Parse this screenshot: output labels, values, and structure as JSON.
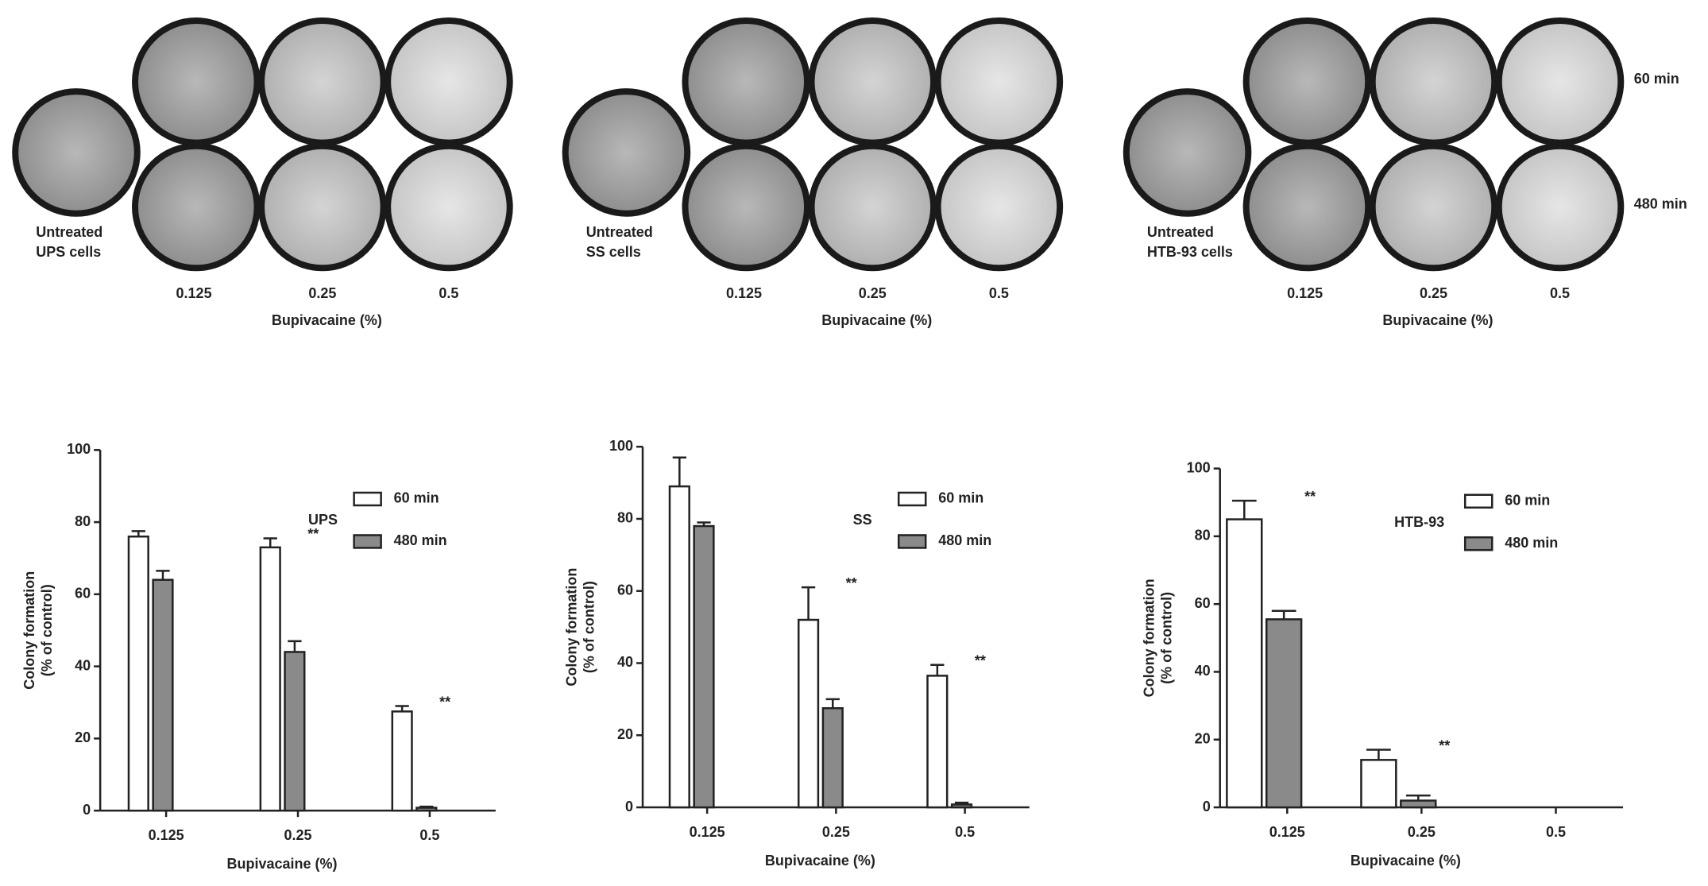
{
  "plates": {
    "row_labels": [
      "60 min",
      "480 min"
    ],
    "panels": [
      {
        "label": [
          "Untreated",
          "UPS cells"
        ],
        "doses": [
          "0.125",
          "0.25",
          "0.5"
        ],
        "xlabel": "Bupivacaine (%)"
      },
      {
        "label": [
          "Untreated",
          "SS cells"
        ],
        "doses": [
          "0.125",
          "0.25",
          "0.5"
        ],
        "xlabel": "Bupivacaine (%)"
      },
      {
        "label": [
          "Untreated",
          "HTB-93 cells"
        ],
        "doses": [
          "0.125",
          "0.25",
          "0.5"
        ],
        "xlabel": "Bupivacaine (%)"
      }
    ]
  },
  "chart_data": [
    {
      "type": "bar",
      "label": "UPS",
      "xlabel": "Bupivacaine (%)",
      "ylabel": [
        "Colony formation",
        "(% of control)"
      ],
      "categories": [
        "0.125",
        "0.25",
        "0.5"
      ],
      "ylim": [
        0,
        100
      ],
      "yticks": [
        0,
        20,
        40,
        60,
        80,
        100
      ],
      "legend": "upper right",
      "series": [
        {
          "name": "60 min",
          "color": "#ffffff",
          "values": [
            76,
            73,
            27.5
          ],
          "errors": [
            1.5,
            2.5,
            1.5
          ]
        },
        {
          "name": "480 min",
          "color": "#8a8a8a",
          "values": [
            64,
            44,
            0.8
          ],
          "errors": [
            2.5,
            3,
            0.3
          ]
        }
      ],
      "annotations": [
        {
          "text": "**",
          "x": "0.25"
        },
        {
          "text": "**",
          "x": "0.5"
        }
      ]
    },
    {
      "type": "bar",
      "label": "SS",
      "xlabel": "Bupivacaine (%)",
      "ylabel": [
        "Colony formation",
        "(% of control)"
      ],
      "categories": [
        "0.125",
        "0.25",
        "0.5"
      ],
      "ylim": [
        0,
        100
      ],
      "yticks": [
        0,
        20,
        40,
        60,
        80,
        100
      ],
      "legend": "upper right",
      "series": [
        {
          "name": "60 min",
          "color": "#ffffff",
          "values": [
            89,
            52,
            36.5
          ],
          "errors": [
            8,
            9,
            3
          ]
        },
        {
          "name": "480 min",
          "color": "#8a8a8a",
          "values": [
            78,
            27.5,
            0.8
          ],
          "errors": [
            1,
            2.5,
            0.5
          ]
        }
      ],
      "annotations": [
        {
          "text": "**",
          "x": "0.25"
        },
        {
          "text": "**",
          "x": "0.5"
        }
      ]
    },
    {
      "type": "bar",
      "label": "HTB-93",
      "xlabel": "Bupivacaine (%)",
      "ylabel": [
        "Colony formation",
        "(% of control)"
      ],
      "categories": [
        "0.125",
        "0.25",
        "0.5"
      ],
      "ylim": [
        0,
        100
      ],
      "yticks": [
        0,
        20,
        40,
        60,
        80,
        100
      ],
      "legend": "upper right",
      "series": [
        {
          "name": "60 min",
          "color": "#ffffff",
          "values": [
            85,
            14,
            null
          ],
          "errors": [
            5.5,
            3,
            null
          ]
        },
        {
          "name": "480 min",
          "color": "#8a8a8a",
          "values": [
            55.5,
            2,
            null
          ],
          "errors": [
            2.5,
            1.5,
            null
          ]
        }
      ],
      "annotations": [
        {
          "text": "**",
          "x": "0.125"
        },
        {
          "text": "**",
          "x": "0.25"
        }
      ]
    }
  ]
}
